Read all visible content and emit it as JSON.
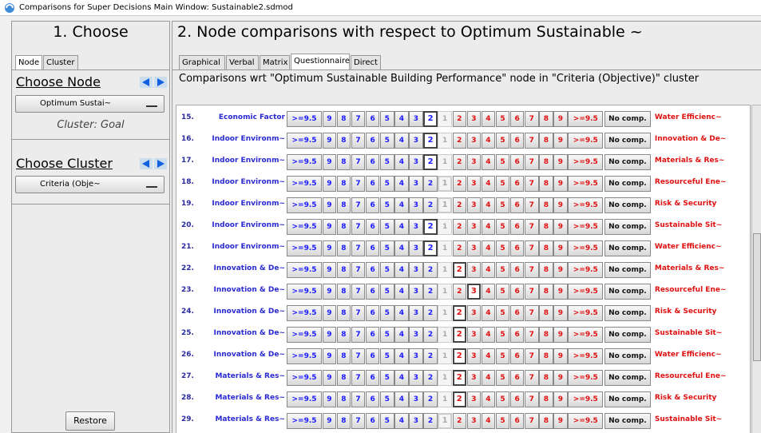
{
  "window_title": "Comparisons for Super Decisions Main Window: Sustainable2.sdmod",
  "left_panel": {
    "heading": "1. Choose",
    "tabs": [
      "Node",
      "Cluster"
    ],
    "choose_node": "Choose Node",
    "node_dropdown": "Optimum Sustai~",
    "cluster_label": "Cluster: Goal",
    "choose_cluster": "Choose Cluster",
    "cluster_dropdown": "Criteria (Obje~",
    "restore": "Restore"
  },
  "right_panel": {
    "heading": "2. Node comparisons with respect to Optimum Sustainable ~",
    "tabs": [
      "Graphical",
      "Verbal",
      "Matrix",
      "Questionnaire",
      "Direct"
    ],
    "active_tab": 3,
    "description": "Comparisons wrt \"Optimum Sustainable Building Performance\" node in \"Criteria (Objective)\" cluster",
    "scale": [
      ">=9.5",
      9,
      8,
      7,
      6,
      5,
      4,
      3,
      2,
      1,
      2,
      3,
      4,
      5,
      6,
      7,
      8,
      9,
      ">=9.5"
    ],
    "no_comp": "No comp.",
    "rows": [
      {
        "number": "15.",
        "left": "Economic Factor",
        "right": "Water Efficienc~",
        "selected": 8
      },
      {
        "number": "16.",
        "left": "Indoor Environm~",
        "right": "Innovation & De~",
        "selected": 8
      },
      {
        "number": "17.",
        "left": "Indoor Environm~",
        "right": "Materials & Res~",
        "selected": 8
      },
      {
        "number": "18.",
        "left": "Indoor Environm~",
        "right": "Resourceful Ene~",
        "selected": 9
      },
      {
        "number": "19.",
        "left": "Indoor Environm~",
        "right": "Risk & Security",
        "selected": 9
      },
      {
        "number": "20.",
        "left": "Indoor Environm~",
        "right": "Sustainable Sit~",
        "selected": 8
      },
      {
        "number": "21.",
        "left": "Indoor Environm~",
        "right": "Water Efficienc~",
        "selected": 8
      },
      {
        "number": "22.",
        "left": "Innovation & De~",
        "right": "Materials & Res~",
        "selected": 10
      },
      {
        "number": "23.",
        "left": "Innovation & De~",
        "right": "Resourceful Ene~",
        "selected": 11
      },
      {
        "number": "24.",
        "left": "Innovation & De~",
        "right": "Risk & Security",
        "selected": 10
      },
      {
        "number": "25.",
        "left": "Innovation & De~",
        "right": "Sustainable Sit~",
        "selected": 10
      },
      {
        "number": "26.",
        "left": "Innovation & De~",
        "right": "Water Efficienc~",
        "selected": 10
      },
      {
        "number": "27.",
        "left": "Materials & Res~",
        "right": "Resourceful Ene~",
        "selected": 10
      },
      {
        "number": "28.",
        "left": "Materials & Res~",
        "right": "Risk & Security",
        "selected": 10
      },
      {
        "number": "29.",
        "left": "Materials & Res~",
        "right": "Sustainable Sit~",
        "selected": 9
      }
    ]
  }
}
